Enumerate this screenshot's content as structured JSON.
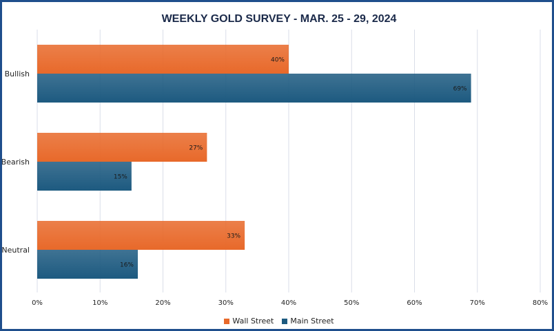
{
  "chart_data": {
    "type": "bar",
    "orientation": "horizontal",
    "title": "WEEKLY GOLD SURVEY - MAR. 25 - 29, 2024",
    "categories": [
      "Bullish",
      "Bearish",
      "Neutral"
    ],
    "series": [
      {
        "name": "Wall Street",
        "values": [
          40,
          27,
          33
        ],
        "labels": [
          "40%",
          "27%",
          "33%"
        ],
        "color": "#e8692a"
      },
      {
        "name": "Main Street",
        "values": [
          69,
          15,
          16
        ],
        "labels": [
          "69%",
          "15%",
          "16%"
        ],
        "color": "#1d5a80"
      }
    ],
    "xlim": [
      0,
      80
    ],
    "xticks": [
      0,
      10,
      20,
      30,
      40,
      50,
      60,
      70,
      80
    ],
    "xtick_labels": [
      "0%",
      "10%",
      "20%",
      "30%",
      "40%",
      "50%",
      "60%",
      "70%",
      "80%"
    ],
    "grid": true,
    "legend_position": "bottom",
    "frame_color": "#1f4e8c"
  }
}
